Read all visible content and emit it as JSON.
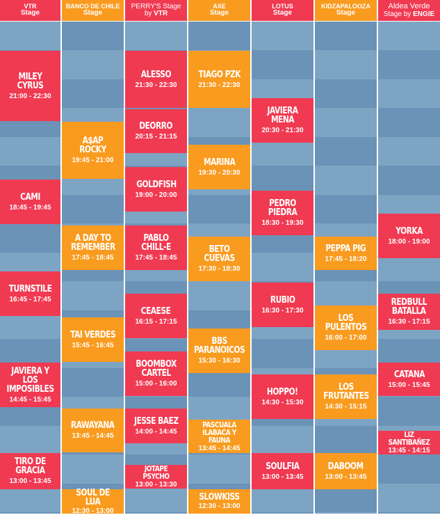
{
  "colors": {
    "red": "#f03a52",
    "orange": "#f99b1f",
    "lane_light": "#7ea4c4",
    "lane_dark": "#6b93b7"
  },
  "stages": [
    {
      "line1": "VTR",
      "line2": "Stage",
      "color": "red"
    },
    {
      "line1": "BANCO DE CHILE",
      "line2": "Stage",
      "color": "orange"
    },
    {
      "line1": "PERRY'S Stage",
      "line2": "by VTR",
      "color": "red"
    },
    {
      "line1": "AXE",
      "line2": "Stage",
      "color": "orange"
    },
    {
      "line1": "LOTUS",
      "line2": "Stage",
      "color": "red"
    },
    {
      "line1": "KIDZAPALOOZA",
      "line2": "Stage",
      "color": "orange"
    },
    {
      "line1": "Aldea Verde",
      "line2": "Stage by ENGIE",
      "color": "red"
    }
  ],
  "acts": [
    {
      "name": "MILEY CYRUS",
      "time": "21:00 - 22:30"
    },
    {
      "name": "CAMI",
      "time": "18:45 - 19:45"
    },
    {
      "name": "TURNSTILE",
      "time": "16:45 - 17:45"
    },
    {
      "name": "JAVIERA Y\nLOS IMPOSIBLES",
      "time": "14:45 - 15:45"
    },
    {
      "name": "TIRO DE\nGRACIA",
      "time": "13:00 - 13:45"
    },
    {
      "name": "A$AP ROCKY",
      "time": "19:45 - 21:00"
    },
    {
      "name": "A DAY TO\nREMEMBER",
      "time": "17:45 - 18:45"
    },
    {
      "name": "TAI VERDES",
      "time": "15:45 - 16:45"
    },
    {
      "name": "RAWAYANA",
      "time": "13:45 - 14:45"
    },
    {
      "name": "SOUL DE LUA",
      "time": "12:30 - 13:00"
    },
    {
      "name": "ALESSO",
      "time": "21:30 - 22:30"
    },
    {
      "name": "DEORRO",
      "time": "20:15 - 21:15"
    },
    {
      "name": "GOLDFISH",
      "time": "19:00 - 20:00"
    },
    {
      "name": "PABLO CHILL-E",
      "time": "17:45 - 18:45"
    },
    {
      "name": "CEAESE",
      "time": "16:15 - 17:15"
    },
    {
      "name": "BOOMBOX\nCARTEL",
      "time": "15:00 - 16:00"
    },
    {
      "name": "JESSE BAEZ",
      "time": "14:00 - 14:45"
    },
    {
      "name": "JOTAPE PSYCHO",
      "time": "13:00 - 13:30"
    },
    {
      "name": "TIAGO PZK",
      "time": "21:30 - 22:30"
    },
    {
      "name": "MARINA",
      "time": "19:30 - 20:30"
    },
    {
      "name": "BETO CUEVAS",
      "time": "17:30 - 18:30"
    },
    {
      "name": "BBS\nPARANOICOS",
      "time": "15:30 - 16:30"
    },
    {
      "name": "PASCUALA\nILABACA Y FAUNA",
      "time": "13:45 - 14:45"
    },
    {
      "name": "SLOWKISS",
      "time": "12:30 - 13:00"
    },
    {
      "name": "JAVIERA MENA",
      "time": "20:30 - 21:30"
    },
    {
      "name": "PEDRO PIEDRA",
      "time": "18:30 - 19:30"
    },
    {
      "name": "RUBIO",
      "time": "16:30 - 17:30"
    },
    {
      "name": "HOPPO!",
      "time": "14:30 - 15:30"
    },
    {
      "name": "SOULFIA",
      "time": "13:00 - 13:45"
    },
    {
      "name": "PEPPA PIG",
      "time": "17:45 - 18:20"
    },
    {
      "name": "LOS PULENTOS",
      "time": "16:00 - 17:00"
    },
    {
      "name": "LOS\nFRUTANTES",
      "time": "14:30 - 15:15"
    },
    {
      "name": "DABOOM",
      "time": "13:00 - 13:45"
    },
    {
      "name": "YORKA",
      "time": "18:00 - 19:00"
    },
    {
      "name": "REDBULL\nBATALLA",
      "time": "16:30 - 17:15"
    },
    {
      "name": "CATANA",
      "time": "15:00 - 15:45"
    },
    {
      "name": "LIZ SANTIBAÑEZ",
      "time": "13:45 - 14:15"
    }
  ]
}
